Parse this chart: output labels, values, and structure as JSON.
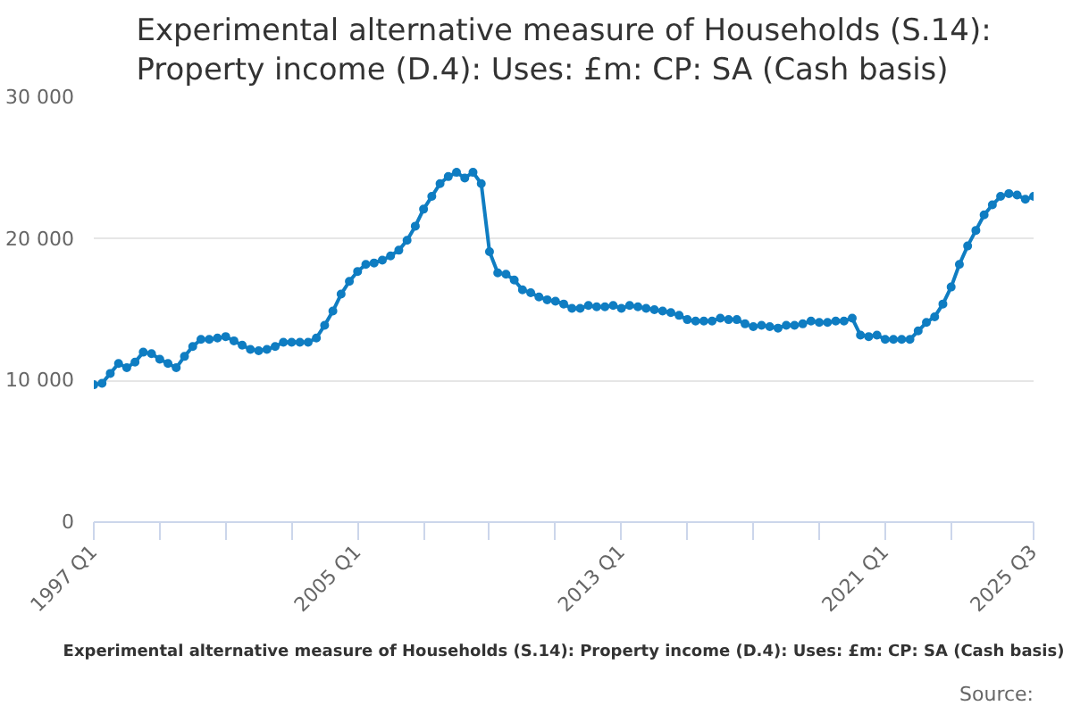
{
  "chart_data": {
    "type": "line",
    "title": "Experimental alternative measure of Households (S.14): Property income (D.4): Uses: £m: CP: SA (Cash basis)",
    "annotations": [
      "Experimental alternative measure of Households (S.14): Property income (D.4): Uses: £m: CP: SA (Cash basis)",
      "Source:"
    ],
    "x": [
      "1997-01",
      "1997-04",
      "1997-07",
      "1997-10",
      "1998-01",
      "1998-04",
      "1998-07",
      "1998-10",
      "1999-01",
      "1999-04",
      "1999-07",
      "1999-10",
      "2000-01",
      "2000-04",
      "2000-07",
      "2000-10",
      "2001-01",
      "2001-04",
      "2001-07",
      "2001-10",
      "2002-01",
      "2002-04",
      "2002-07",
      "2002-10",
      "2003-01",
      "2003-04",
      "2003-07",
      "2003-10",
      "2004-01",
      "2004-04",
      "2004-07",
      "2004-10",
      "2005-01",
      "2005-04",
      "2005-07",
      "2005-10",
      "2006-01",
      "2006-04",
      "2006-07",
      "2006-10",
      "2007-01",
      "2007-04",
      "2007-07",
      "2007-10",
      "2008-01",
      "2008-04",
      "2008-07",
      "2008-10",
      "2009-01",
      "2009-04",
      "2009-07",
      "2009-10",
      "2010-01",
      "2010-04",
      "2010-07",
      "2010-10",
      "2011-01",
      "2011-04",
      "2011-07",
      "2011-10",
      "2012-01",
      "2012-04",
      "2012-07",
      "2012-10",
      "2013-01",
      "2013-04",
      "2013-07",
      "2013-10",
      "2014-01",
      "2014-04",
      "2014-07",
      "2014-10",
      "2015-01",
      "2015-04",
      "2015-07",
      "2015-10",
      "2016-01",
      "2016-04",
      "2016-07",
      "2016-10",
      "2017-01",
      "2017-04",
      "2017-07",
      "2017-10",
      "2018-01",
      "2018-04",
      "2018-07",
      "2018-10",
      "2019-01",
      "2019-04",
      "2019-07",
      "2019-10",
      "2020-01",
      "2020-04",
      "2020-07",
      "2020-10",
      "2021-01",
      "2021-04",
      "2021-07",
      "2021-10",
      "2022-01",
      "2022-04",
      "2022-07",
      "2022-10",
      "2023-01",
      "2023-04",
      "2023-07",
      "2023-10",
      "2024-01",
      "2024-04",
      "2024-07",
      "2024-10",
      "2025-01",
      "2025-04",
      "2025-07"
    ],
    "series": [
      {
        "color": "#0f7dc2",
        "values": [
          9700,
          9800,
          10500,
          11200,
          10900,
          11300,
          12000,
          11900,
          11500,
          11200,
          10900,
          11700,
          12400,
          12900,
          12900,
          13000,
          13100,
          12800,
          12500,
          12200,
          12100,
          12200,
          12400,
          12700,
          12700,
          12700,
          12700,
          13000,
          13900,
          14900,
          16100,
          17000,
          17700,
          18200,
          18300,
          18500,
          18800,
          19200,
          19900,
          20900,
          22100,
          23000,
          23900,
          24400,
          24700,
          24300,
          24700,
          23900,
          19100,
          17600,
          17500,
          17100,
          16400,
          16200,
          15900,
          15700,
          15600,
          15400,
          15100,
          15100,
          15300,
          15200,
          15200,
          15300,
          15100,
          15300,
          15200,
          15100,
          15000,
          14900,
          14800,
          14600,
          14300,
          14200,
          14200,
          14200,
          14400,
          14300,
          14300,
          14000,
          13800,
          13900,
          13800,
          13700,
          13900,
          13900,
          14000,
          14200,
          14100,
          14100,
          14200,
          14200,
          14400,
          13200,
          13100,
          13200,
          12900,
          12900,
          12900,
          12900,
          13500,
          14100,
          14500,
          15400,
          16600,
          18200,
          19500,
          20600,
          21700,
          22400,
          23000,
          23200,
          23100,
          22800,
          23000
        ]
      }
    ],
    "xlim": [
      "1997-01",
      "2025-07"
    ],
    "xticks": [
      {
        "value": "1997-01",
        "label": "1997 Q1"
      },
      {
        "value": "1999-01",
        "label": null
      },
      {
        "value": "2001-01",
        "label": null
      },
      {
        "value": "2003-01",
        "label": null
      },
      {
        "value": "2005-01",
        "label": "2005 Q1"
      },
      {
        "value": "2007-01",
        "label": null
      },
      {
        "value": "2009-01",
        "label": null
      },
      {
        "value": "2011-01",
        "label": null
      },
      {
        "value": "2013-01",
        "label": "2013 Q1"
      },
      {
        "value": "2015-01",
        "label": null
      },
      {
        "value": "2017-01",
        "label": null
      },
      {
        "value": "2019-01",
        "label": null
      },
      {
        "value": "2021-01",
        "label": "2021 Q1"
      },
      {
        "value": "2023-01",
        "label": null
      },
      {
        "value": "2025-07",
        "label": "2025 Q3"
      }
    ],
    "ylim": [
      0,
      30000
    ],
    "yticks": [
      {
        "value": 0,
        "label": "0"
      },
      {
        "value": 10000,
        "label": "10 000"
      },
      {
        "value": 20000,
        "label": "20 000"
      },
      {
        "value": 30000,
        "label": "30 000"
      }
    ],
    "grid": "y",
    "marker": "circle",
    "line_style": "solid"
  }
}
